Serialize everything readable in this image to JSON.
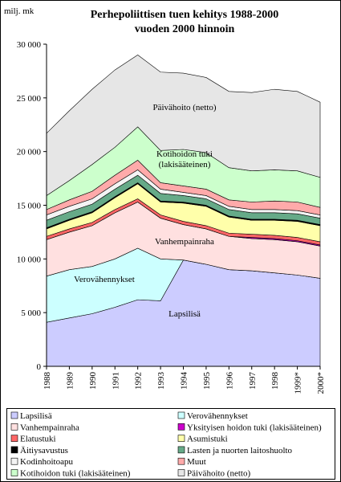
{
  "chart_data": {
    "type": "stacked_area",
    "title": "Perhepoliittisen tuen kehitys 1988-2000",
    "subtitle": "vuoden 2000 hinnoin",
    "y_label": "milj. mk",
    "categories": [
      "1988",
      "1989",
      "1990",
      "1991",
      "1992",
      "1993",
      "1994",
      "1995",
      "1996",
      "1997",
      "1998",
      "1999*",
      "2000*"
    ],
    "ylim": [
      0,
      30000
    ],
    "yticks": [
      0,
      {
        "value": 5000,
        "label": "5 000"
      },
      {
        "value": 10000,
        "label": "10 000"
      },
      {
        "value": 15000,
        "label": "15 000"
      },
      {
        "value": 20000,
        "label": "20 000"
      },
      {
        "value": 25000,
        "label": "25 000"
      },
      {
        "value": 30000,
        "label": "30 000"
      }
    ],
    "annotations": [
      "Päivähoito (netto)",
      "Kotihoidon tuki",
      "(lakisääteinen)",
      "Vanhempainraha",
      "Verovähennykset",
      "Lapsilisä"
    ],
    "series": [
      {
        "name": "Lapsilisä",
        "color": "#ccccff",
        "values": [
          4100,
          4500,
          4900,
          5500,
          6200,
          6100,
          9900,
          9500,
          9000,
          8900,
          8700,
          8500,
          8200
        ]
      },
      {
        "name": "Verovähennykset",
        "color": "#ccffff",
        "values": [
          4300,
          4500,
          4400,
          4500,
          4800,
          3900,
          0,
          0,
          0,
          0,
          0,
          0,
          0
        ]
      },
      {
        "name": "Vanhempainraha",
        "color": "#ffe0e0",
        "values": [
          3400,
          3500,
          3800,
          4300,
          4300,
          3800,
          3300,
          3300,
          3100,
          3000,
          3100,
          3100,
          3000
        ]
      },
      {
        "name": "Yksityisen hoidon tuki (lakisääteinen)",
        "color": "#cc00cc",
        "values": [
          0,
          0,
          0,
          0,
          0,
          0,
          0,
          0,
          0,
          100,
          100,
          100,
          100
        ]
      },
      {
        "name": "Elatustuki",
        "color": "#ff6666",
        "values": [
          300,
          300,
          300,
          300,
          300,
          300,
          300,
          300,
          300,
          300,
          300,
          300,
          300
        ]
      },
      {
        "name": "Asumistuki",
        "color": "#ffffaa",
        "values": [
          700,
          800,
          900,
          1100,
          1400,
          1200,
          1700,
          1800,
          1500,
          1300,
          1400,
          1500,
          1500
        ]
      },
      {
        "name": "Äitiysavustus",
        "color": "#000000",
        "values": [
          100,
          100,
          100,
          100,
          100,
          100,
          100,
          100,
          100,
          100,
          100,
          100,
          100
        ]
      },
      {
        "name": "Lasten ja nuorten laitoshuolto",
        "color": "#66aa88",
        "values": [
          700,
          700,
          700,
          700,
          700,
          700,
          600,
          600,
          600,
          600,
          600,
          600,
          600
        ]
      },
      {
        "name": "Kodinhoitoapu",
        "color": "#f4f4f4",
        "values": [
          500,
          500,
          500,
          500,
          500,
          400,
          300,
          300,
          300,
          300,
          300,
          300,
          300
        ]
      },
      {
        "name": "Muut",
        "color": "#ffaaaa",
        "values": [
          500,
          600,
          700,
          800,
          900,
          600,
          600,
          600,
          600,
          700,
          800,
          800,
          700
        ]
      },
      {
        "name": "Kotihoidon tuki (lakisääteinen)",
        "color": "#ccffcc",
        "values": [
          1300,
          1800,
          2500,
          2600,
          3100,
          3000,
          3400,
          3400,
          3000,
          2900,
          2900,
          2900,
          2800
        ]
      },
      {
        "name": "Päivähoito (netto)",
        "color": "#e6e6e6",
        "values": [
          5800,
          6500,
          7000,
          7200,
          6700,
          7300,
          7100,
          7000,
          7100,
          7300,
          7500,
          7400,
          7000
        ]
      }
    ]
  }
}
